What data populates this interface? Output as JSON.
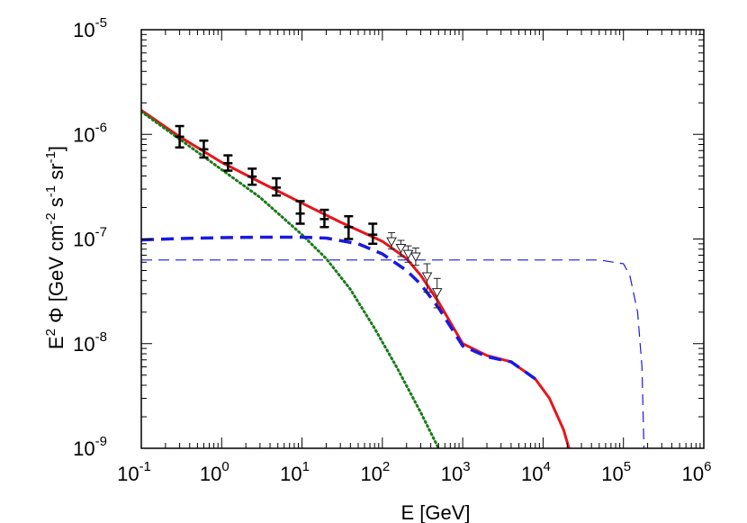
{
  "chart_data": {
    "type": "line",
    "xscale": "log",
    "yscale": "log",
    "xlim": [
      0.1,
      1000000
    ],
    "ylim": [
      1e-09,
      1e-05
    ],
    "xlabel": "E [GeV]",
    "ylabel": "E^2 Φ [GeV cm^-2 s^-1 sr^-1]",
    "ylabel_parts": {
      "prefix": "E",
      "p1": "2",
      "mid": " Φ [GeV cm",
      "p2": "-2",
      "s": " s",
      "p3": "-1",
      "sr": " sr",
      "p4": "-1",
      "end": "]"
    },
    "x_ticks": [
      {
        "base": "10",
        "exp": "-1",
        "value": 0.1
      },
      {
        "base": "10",
        "exp": "0",
        "value": 1
      },
      {
        "base": "10",
        "exp": "1",
        "value": 10
      },
      {
        "base": "10",
        "exp": "2",
        "value": 100
      },
      {
        "base": "10",
        "exp": "3",
        "value": 1000
      },
      {
        "base": "10",
        "exp": "4",
        "value": 10000
      },
      {
        "base": "10",
        "exp": "5",
        "value": 100000
      },
      {
        "base": "10",
        "exp": "6",
        "value": 1000000
      }
    ],
    "y_ticks": [
      {
        "base": "10",
        "exp": "-9",
        "value": 1e-09
      },
      {
        "base": "10",
        "exp": "-8",
        "value": 1e-08
      },
      {
        "base": "10",
        "exp": "-7",
        "value": 1e-07
      },
      {
        "base": "10",
        "exp": "-6",
        "value": 1e-06
      },
      {
        "base": "10",
        "exp": "-5",
        "value": 1e-05
      }
    ],
    "grid": false,
    "legend": "none",
    "series": [
      {
        "style": "solid",
        "color": "#e8141b",
        "x": [
          0.1,
          0.3,
          1,
          3,
          10,
          30,
          100,
          200,
          300,
          500,
          1000,
          2000,
          4000,
          8000,
          12000,
          18000,
          21000
        ],
        "y": [
          1.7e-06,
          9.5e-07,
          5.4e-07,
          3.5e-07,
          2.2e-07,
          1.45e-07,
          9.5e-08,
          6.5e-08,
          4.5e-08,
          2.5e-08,
          1e-08,
          7.7e-09,
          6.7e-09,
          4.6e-09,
          3e-09,
          1.5e-09,
          1e-09
        ]
      },
      {
        "style": "dotted",
        "color": "#1a7a1a",
        "x": [
          0.1,
          0.3,
          1,
          3,
          10,
          20,
          40,
          80,
          150,
          300,
          500
        ],
        "y": [
          1.65e-06,
          9e-07,
          4.6e-07,
          2.5e-07,
          1.1e-07,
          6.5e-08,
          3.3e-08,
          1.4e-08,
          6e-09,
          2.2e-09,
          1e-09
        ]
      },
      {
        "style": "dashed-thick",
        "color": "#1a1ae0",
        "x": [
          0.1,
          0.3,
          1,
          3,
          10,
          20,
          50,
          100,
          200,
          300,
          500,
          1000,
          2000,
          4000,
          8000
        ],
        "y": [
          9.8e-08,
          1.01e-07,
          1.03e-07,
          1.04e-07,
          1.04e-07,
          1.02e-07,
          9e-08,
          7.2e-08,
          5e-08,
          3.7e-08,
          2.2e-08,
          9.5e-09,
          7.5e-09,
          6.7e-09,
          4.6e-09
        ]
      },
      {
        "style": "dashed-thin",
        "color": "#1a1ae0",
        "x": [
          0.1,
          1,
          10,
          100,
          1000,
          10000,
          50000,
          100000,
          120000,
          150000,
          170000,
          180000
        ],
        "y": [
          6.3e-08,
          6.3e-08,
          6.3e-08,
          6.3e-08,
          6.3e-08,
          6.3e-08,
          6.3e-08,
          5.8e-08,
          4.5e-08,
          2e-08,
          6e-09,
          1e-09
        ]
      }
    ],
    "error_points_black": [
      {
        "x": 0.3,
        "y": 9.5e-07,
        "lo": 7.5e-07,
        "hi": 1.2e-06
      },
      {
        "x": 0.6,
        "y": 7.2e-07,
        "lo": 6e-07,
        "hi": 8.7e-07
      },
      {
        "x": 1.2,
        "y": 5.3e-07,
        "lo": 4.5e-07,
        "hi": 6.3e-07
      },
      {
        "x": 2.4,
        "y": 3.95e-07,
        "lo": 3.3e-07,
        "hi": 4.7e-07
      },
      {
        "x": 4.8,
        "y": 3.1e-07,
        "lo": 2.6e-07,
        "hi": 3.8e-07
      },
      {
        "x": 9.5,
        "y": 1.75e-07,
        "lo": 1.4e-07,
        "hi": 2.3e-07
      },
      {
        "x": 19,
        "y": 1.55e-07,
        "lo": 1.3e-07,
        "hi": 1.9e-07
      },
      {
        "x": 38,
        "y": 1.3e-07,
        "lo": 1e-07,
        "hi": 1.65e-07
      },
      {
        "x": 76,
        "y": 1.1e-07,
        "lo": 9e-08,
        "hi": 1.4e-07
      }
    ],
    "error_points_triangles": [
      {
        "x": 130,
        "y": 9.5e-08,
        "lo": 8e-08,
        "hi": 1.15e-07
      },
      {
        "x": 170,
        "y": 8.2e-08,
        "lo": 6.8e-08,
        "hi": 9.7e-08
      },
      {
        "x": 210,
        "y": 7.2e-08,
        "lo": 6e-08,
        "hi": 8.6e-08
      },
      {
        "x": 260,
        "y": 6.8e-08,
        "lo": 5.6e-08,
        "hi": 8.2e-08
      },
      {
        "x": 360,
        "y": 4.4e-08,
        "lo": 3.1e-08,
        "hi": 5.8e-08
      },
      {
        "x": 480,
        "y": 3.1e-08,
        "lo": 2.2e-08,
        "hi": 4.2e-08
      }
    ]
  }
}
